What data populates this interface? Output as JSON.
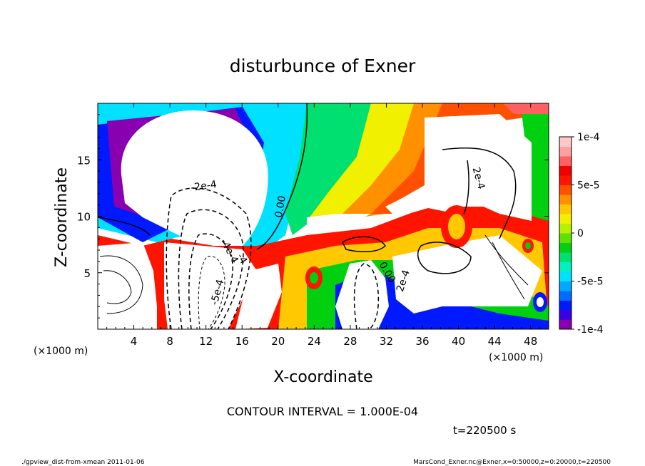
{
  "chart_data": {
    "type": "heatmap",
    "title": "disturbunce of Exner",
    "xlabel": "X-coordinate",
    "ylabel": "Z-coordinate",
    "x_unit": "(×1000 m)",
    "xlim": [
      0,
      50
    ],
    "ylim": [
      0,
      20
    ],
    "x_ticks": [
      4,
      8,
      12,
      16,
      20,
      24,
      28,
      32,
      36,
      40,
      44,
      48
    ],
    "y_ticks": [
      5,
      10,
      15
    ],
    "colorbar": {
      "range": [
        -0.0001,
        0.0001
      ],
      "ticks": [
        {
          "value": 0.0001,
          "label": "1e-4"
        },
        {
          "value": 5e-05,
          "label": "5e-5"
        },
        {
          "value": 0,
          "label": "0"
        },
        {
          "value": -5e-05,
          "label": "-5e-5"
        },
        {
          "value": -0.0001,
          "label": "-1e-4"
        }
      ],
      "colors": [
        "#8800b0",
        "#3d00e0",
        "#0019ff",
        "#006cff",
        "#00a8ff",
        "#00e0ff",
        "#00f0c0",
        "#00e070",
        "#00d010",
        "#60e000",
        "#b8f000",
        "#f0f000",
        "#ffc800",
        "#ff9000",
        "#ff5000",
        "#ff1400",
        "#f00000",
        "#ff6060",
        "#ffa0a0",
        "#ffc8c8"
      ]
    },
    "contour_labels": [
      {
        "text": "-2e-4",
        "x": 11.8,
        "z": 12.4,
        "rotate": -8
      },
      {
        "text": "0.00",
        "x": 20.6,
        "z": 10.8,
        "rotate": -80
      },
      {
        "text": "-4e-4",
        "x": 14.3,
        "z": 6.8,
        "rotate": 62
      },
      {
        "text": "-5e-4",
        "x": 13.6,
        "z": 3.2,
        "rotate": -75
      },
      {
        "text": "-4",
        "x": 15.7,
        "z": 6.1,
        "rotate": 60
      },
      {
        "text": "0.00",
        "x": 31.8,
        "z": 4.9,
        "rotate": 60
      },
      {
        "text": "2e-4",
        "x": 34.2,
        "z": 4.2,
        "rotate": -72
      },
      {
        "text": "2e-4",
        "x": 41.9,
        "z": 13.3,
        "rotate": 75
      }
    ],
    "contour_interval_text": "CONTOUR INTERVAL = 1.000E-04",
    "time_text": "t=220500 s"
  },
  "footer": {
    "left": "./gpview_dist-from-xmean  2011-01-06",
    "right": "MarsCond_Exner.nc@Exner,x=0:50000,z=0:20000,t=220500"
  }
}
